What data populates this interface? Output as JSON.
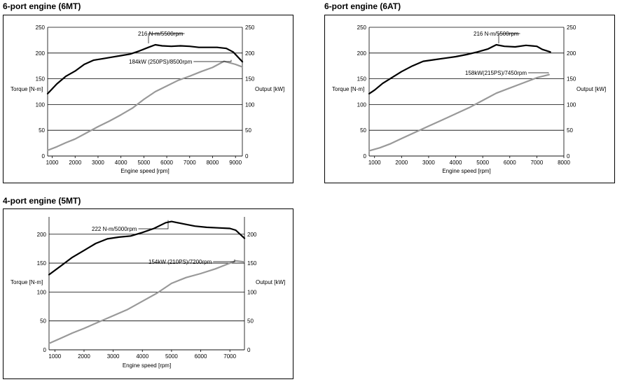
{
  "chart_data": [
    {
      "type": "line",
      "title": "6-port engine (6MT)",
      "xlabel": "Engine speed [rpm]",
      "ylabel_left": "Torque [N-m]",
      "ylabel_right": "Output [kW]",
      "x_ticks": [
        1000,
        2000,
        3000,
        4000,
        5000,
        6000,
        7000,
        8000,
        9000
      ],
      "y_ticks": [
        0,
        50,
        100,
        150,
        200,
        250
      ],
      "y2_ticks": [
        0,
        50,
        100,
        150,
        200,
        250
      ],
      "xlim": [
        800,
        9300
      ],
      "ylim": [
        0,
        250
      ],
      "grid": "horizontal",
      "series": [
        {
          "name": "Torque",
          "color": "#000000",
          "x": [
            800,
            1200,
            1600,
            2000,
            2400,
            2800,
            3200,
            3600,
            4000,
            4400,
            4800,
            5200,
            5500,
            5800,
            6200,
            6600,
            7000,
            7400,
            7800,
            8200,
            8600,
            8900,
            9300
          ],
          "y": [
            121,
            140,
            155,
            165,
            178,
            186,
            189,
            192,
            195,
            198,
            204,
            211,
            216,
            214,
            213,
            214,
            213,
            211,
            211,
            211,
            209,
            202,
            183
          ]
        },
        {
          "name": "Output",
          "color": "#999999",
          "x": [
            800,
            1200,
            1600,
            2000,
            2500,
            3000,
            3500,
            4000,
            4500,
            5000,
            5500,
            6000,
            6500,
            7000,
            7500,
            8000,
            8500,
            9000,
            9300
          ],
          "y": [
            11,
            18,
            26,
            33,
            45,
            57,
            68,
            80,
            93,
            110,
            125,
            136,
            147,
            155,
            164,
            172,
            184,
            178,
            173
          ]
        }
      ],
      "annotations": [
        {
          "text": "216 N-m/5500rpm",
          "x": 5500,
          "y": 216
        },
        {
          "text": "184kW (250PS)/8500rpm",
          "x": 8500,
          "y": 184
        }
      ]
    },
    {
      "type": "line",
      "title": "6-port engine (6AT)",
      "xlabel": "Engine speed [rpm]",
      "ylabel_left": "Torque [N-m]",
      "ylabel_right": "Output [kW]",
      "x_ticks": [
        1000,
        2000,
        3000,
        4000,
        5000,
        6000,
        7000,
        8000
      ],
      "y_ticks": [
        0,
        50,
        100,
        150,
        200,
        250
      ],
      "y2_ticks": [
        0,
        50,
        100,
        150,
        200,
        250
      ],
      "xlim": [
        800,
        8000
      ],
      "ylim": [
        0,
        250
      ],
      "grid": "horizontal",
      "series": [
        {
          "name": "Torque",
          "color": "#000000",
          "x": [
            800,
            1000,
            1300,
            1600,
            2000,
            2400,
            2800,
            3200,
            3600,
            4000,
            4400,
            4800,
            5200,
            5500,
            5800,
            6200,
            6600,
            7000,
            7200,
            7500
          ],
          "y": [
            121,
            128,
            141,
            151,
            164,
            175,
            184,
            187,
            190,
            193,
            197,
            202,
            208,
            216,
            213,
            212,
            215,
            213,
            207,
            202
          ]
        },
        {
          "name": "Output",
          "color": "#999999",
          "x": [
            800,
            1200,
            1600,
            2000,
            2500,
            3000,
            3500,
            4000,
            4500,
            5000,
            5500,
            6000,
            6500,
            7000,
            7450
          ],
          "y": [
            10,
            16,
            24,
            34,
            46,
            58,
            70,
            82,
            94,
            108,
            122,
            132,
            142,
            152,
            158
          ]
        }
      ],
      "annotations": [
        {
          "text": "216 N-m/5500rpm",
          "x": 5500,
          "y": 216
        },
        {
          "text": "158kW(215PS)/7450rpm",
          "x": 7450,
          "y": 158
        }
      ]
    },
    {
      "type": "line",
      "title": "4-port engine (5MT)",
      "xlabel": "Engine speed [rpm]",
      "ylabel_left": "Torque [N-m]",
      "ylabel_right": "Output [kW]",
      "x_ticks": [
        1000,
        2000,
        3000,
        4000,
        5000,
        6000,
        7000
      ],
      "y_ticks": [
        0,
        50,
        100,
        150,
        200
      ],
      "y2_ticks": [
        0,
        50,
        100,
        150,
        200
      ],
      "xlim": [
        800,
        7500
      ],
      "ylim": [
        0,
        230
      ],
      "grid": "horizontal",
      "series": [
        {
          "name": "Torque",
          "color": "#000000",
          "x": [
            800,
            1200,
            1600,
            2000,
            2400,
            2800,
            3200,
            3600,
            4000,
            4400,
            4800,
            5000,
            5400,
            5800,
            6200,
            6600,
            7000,
            7200,
            7500
          ],
          "y": [
            130,
            145,
            160,
            172,
            184,
            192,
            195,
            197,
            203,
            210,
            220,
            222,
            218,
            214,
            212,
            211,
            210,
            207,
            193
          ]
        },
        {
          "name": "Output",
          "color": "#999999",
          "x": [
            800,
            1200,
            1600,
            2000,
            2500,
            3000,
            3500,
            4000,
            4500,
            5000,
            5500,
            6000,
            6500,
            7000,
            7200,
            7500
          ],
          "y": [
            11,
            20,
            29,
            37,
            48,
            59,
            70,
            84,
            98,
            115,
            125,
            132,
            140,
            150,
            154,
            152
          ]
        }
      ],
      "annotations": [
        {
          "text": "222 N-m/5000rpm",
          "x": 5000,
          "y": 222
        },
        {
          "text": "154kW (210PS)/7200rpm",
          "x": 7200,
          "y": 154
        }
      ]
    }
  ]
}
